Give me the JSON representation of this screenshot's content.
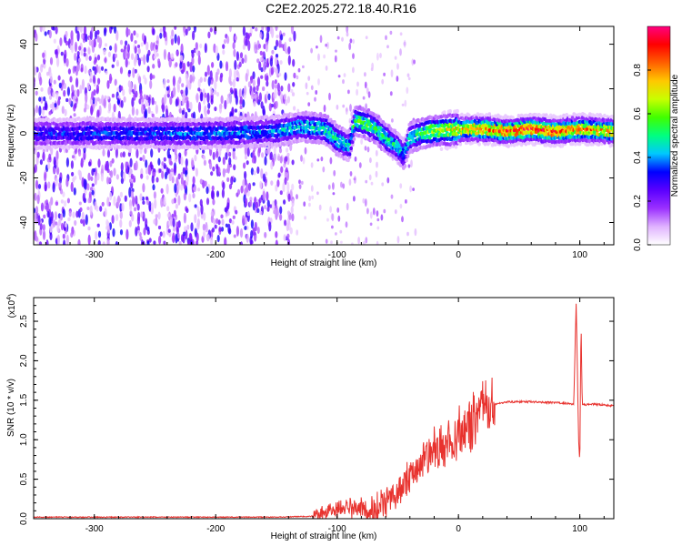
{
  "title": "C2E2.2025.272.18.40.R16",
  "charts": [
    {
      "type": "heatmap",
      "xlabel": "Height of straight line (km)",
      "ylabel": "Frequency (Hz)",
      "xlim": [
        -350,
        128
      ],
      "ylim": [
        -50,
        48
      ],
      "xticks": [
        -300,
        -200,
        -100,
        0,
        100
      ],
      "yticks": [
        -40,
        -20,
        0,
        20,
        40
      ],
      "colorbar": {
        "label": "Normalized spectral amplitude",
        "range": [
          0,
          1
        ],
        "ticks": [
          "0.0",
          "0.2",
          "0.4",
          "0.6",
          "0.8"
        ],
        "colormap": [
          "#ffffff",
          "#e0b3ff",
          "#9b30ff",
          "#5a00ff",
          "#0000ff",
          "#00c8ff",
          "#00ff80",
          "#40ff00",
          "#c8ff00",
          "#ffc800",
          "#ff6000",
          "#ff0000",
          "#ff0080"
        ]
      },
      "ridge": {
        "x": [
          -350,
          -300,
          -250,
          -200,
          -150,
          -130,
          -110,
          -100,
          -90,
          -85,
          -70,
          -60,
          -50,
          -45,
          -40,
          -30,
          -20,
          0,
          20,
          40,
          60,
          80,
          100,
          128
        ],
        "y": [
          0,
          0,
          0,
          0,
          1,
          3,
          2,
          -3,
          -6,
          6,
          3,
          -2,
          -6,
          -10,
          -2,
          0,
          1,
          2,
          2,
          1,
          2,
          1,
          2,
          1
        ],
        "max_amplitude": [
          0.35,
          0.38,
          0.4,
          0.42,
          0.45,
          0.5,
          0.55,
          0.55,
          0.5,
          0.6,
          0.6,
          0.55,
          0.5,
          0.45,
          0.5,
          0.6,
          0.7,
          0.8,
          0.9,
          0.95,
          1.0,
          0.95,
          0.9,
          0.85
        ]
      }
    },
    {
      "type": "line",
      "xlabel": "Height of straight line (km)",
      "ylabel": "SNR (10 * v/v)",
      "exponent_label": "(x10",
      "exponent_power": "4",
      "exponent_close": ")",
      "xlim": [
        -350,
        128
      ],
      "ylim": [
        0,
        2.8
      ],
      "xticks": [
        -300,
        -200,
        -100,
        0,
        100
      ],
      "yticks": [
        "0.0",
        "0.5",
        "1.0",
        "1.5",
        "2.0",
        "2.5"
      ],
      "ytick_values": [
        0,
        0.5,
        1.0,
        1.5,
        2.0,
        2.5
      ],
      "color": "#e8322e",
      "series": [
        {
          "x": [
            -350,
            -300,
            -250,
            -200,
            -150,
            -120,
            -110,
            -100,
            -90,
            -80,
            -70,
            -60,
            -50,
            -40,
            -30,
            -20,
            -10,
            0,
            10,
            20,
            30,
            40,
            60,
            80,
            90,
            95,
            97,
            99,
            100,
            101,
            102,
            105,
            110,
            128
          ],
          "y": [
            0.02,
            0.02,
            0.02,
            0.02,
            0.02,
            0.03,
            0.08,
            0.12,
            0.15,
            0.12,
            0.1,
            0.18,
            0.35,
            0.55,
            0.7,
            0.85,
            0.95,
            1.05,
            1.2,
            1.38,
            1.45,
            1.48,
            1.48,
            1.47,
            1.46,
            1.45,
            2.75,
            1.0,
            0.7,
            2.5,
            1.45,
            1.44,
            1.45,
            1.43
          ]
        }
      ]
    }
  ]
}
